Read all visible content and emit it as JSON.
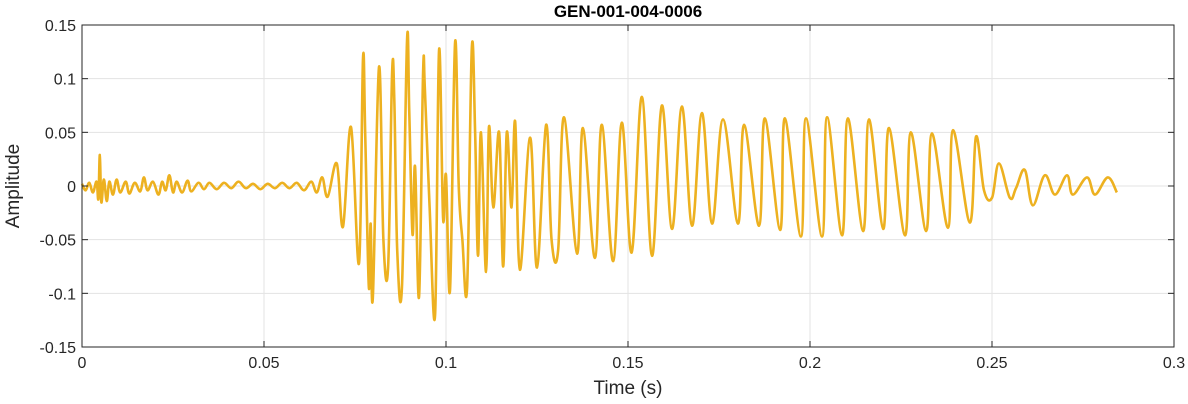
{
  "chart_data": {
    "type": "line",
    "title": "GEN-001-004-0006",
    "xlabel": "Time (s)",
    "ylabel": "Amplitude",
    "xlim": [
      0,
      0.3
    ],
    "ylim": [
      -0.15,
      0.15
    ],
    "xticks": [
      0,
      0.05,
      0.1,
      0.15,
      0.2,
      0.25,
      0.3
    ],
    "xtick_labels": [
      "0",
      "0.05",
      "0.1",
      "0.15",
      "0.2",
      "0.25",
      "0.3"
    ],
    "yticks": [
      -0.15,
      -0.1,
      -0.05,
      0,
      0.05,
      0.1,
      0.15
    ],
    "ytick_labels": [
      "-0.15",
      "-0.1",
      "-0.05",
      "0",
      "0.05",
      "0.1",
      "0.15"
    ],
    "grid": true,
    "line_color": "#EDB120",
    "series": [
      {
        "x": [
          0,
          0.001,
          0.002,
          0.003,
          0.004,
          0.0045,
          0.0049,
          0.0053,
          0.006,
          0.0068,
          0.0075,
          0.0085,
          0.0095,
          0.0105,
          0.012,
          0.013,
          0.0145,
          0.016,
          0.017,
          0.018,
          0.0195,
          0.021,
          0.022,
          0.023,
          0.024,
          0.025,
          0.026,
          0.0275,
          0.029,
          0.03,
          0.032,
          0.0335,
          0.035,
          0.037,
          0.039,
          0.041,
          0.043,
          0.045,
          0.047,
          0.049,
          0.051,
          0.053,
          0.055,
          0.057,
          0.059,
          0.061,
          0.063,
          0.0645,
          0.066,
          0.0675,
          0.07,
          0.0717,
          0.0739,
          0.0761,
          0.0772,
          0.0778,
          0.0788,
          0.0793,
          0.0799,
          0.0816,
          0.0828,
          0.0841,
          0.0852,
          0.0858,
          0.0866,
          0.0879,
          0.0893,
          0.0899,
          0.0908,
          0.0915,
          0.0926,
          0.0937,
          0.0942,
          0.0955,
          0.097,
          0.0981,
          0.0992,
          0.1,
          0.1011,
          0.1025,
          0.1035,
          0.1045,
          0.1058,
          0.1071,
          0.108,
          0.1088,
          0.1096,
          0.111,
          0.1118,
          0.113,
          0.1146,
          0.1157,
          0.1167,
          0.118,
          0.119,
          0.1203,
          0.1231,
          0.125,
          0.1275,
          0.129,
          0.1308,
          0.1324,
          0.136,
          0.1376,
          0.1409,
          0.1428,
          0.1459,
          0.1483,
          0.151,
          0.1538,
          0.1566,
          0.1593,
          0.1621,
          0.1648,
          0.1676,
          0.1703,
          0.1731,
          0.1761,
          0.1802,
          0.1819,
          0.186,
          0.1876,
          0.1918,
          0.1931,
          0.1975,
          0.1989,
          0.2033,
          0.2047,
          0.2088,
          0.2104,
          0.2146,
          0.2162,
          0.2201,
          0.2217,
          0.2261,
          0.2277,
          0.2319,
          0.2335,
          0.2379,
          0.2393,
          0.2439,
          0.2456,
          0.2478,
          0.25,
          0.2519,
          0.2549,
          0.2566,
          0.259,
          0.2612,
          0.2645,
          0.2673,
          0.2706,
          0.2722,
          0.2761,
          0.2783,
          0.2818,
          0.2843
        ],
        "y": [
          0.002,
          -0.004,
          0.003,
          -0.006,
          0.004,
          -0.012,
          0.029,
          -0.015,
          0.006,
          -0.014,
          0.004,
          -0.008,
          0.006,
          -0.006,
          0.004,
          -0.007,
          0.003,
          -0.005,
          0.008,
          -0.004,
          0.004,
          -0.008,
          0.004,
          -0.004,
          0.01,
          -0.006,
          0.004,
          -0.006,
          0.005,
          -0.005,
          0.003,
          -0.003,
          0.003,
          -0.003,
          0.003,
          -0.002,
          0.004,
          -0.002,
          0.002,
          -0.003,
          0.002,
          -0.002,
          0.003,
          -0.002,
          0.003,
          -0.004,
          0.004,
          -0.006,
          0.008,
          -0.01,
          0.021,
          -0.038,
          0.055,
          -0.072,
          0.119,
          0.049,
          -0.094,
          -0.035,
          -0.104,
          0.111,
          -0.05,
          -0.075,
          0.106,
          0.08,
          -0.06,
          -0.094,
          0.136,
          0.07,
          -0.045,
          0.018,
          -0.103,
          0.105,
          0.09,
          -0.02,
          -0.12,
          0.127,
          -0.03,
          0.01,
          -0.097,
          0.134,
          0.0,
          -0.05,
          -0.094,
          0.129,
          0.05,
          -0.065,
          0.05,
          -0.08,
          0.055,
          -0.02,
          0.05,
          -0.075,
          0.05,
          -0.02,
          0.06,
          -0.078,
          0.045,
          -0.076,
          0.057,
          -0.05,
          -0.06,
          0.064,
          -0.063,
          0.054,
          -0.067,
          0.057,
          -0.07,
          0.059,
          -0.062,
          0.083,
          -0.065,
          0.075,
          -0.04,
          0.074,
          -0.037,
          0.068,
          -0.035,
          0.062,
          -0.035,
          0.057,
          -0.037,
          0.063,
          -0.041,
          0.063,
          -0.047,
          0.063,
          -0.047,
          0.064,
          -0.046,
          0.063,
          -0.042,
          0.062,
          -0.04,
          0.054,
          -0.046,
          0.05,
          -0.042,
          0.049,
          -0.039,
          0.052,
          -0.034,
          0.046,
          -0.004,
          -0.011,
          0.021,
          -0.011,
          -0.002,
          0.015,
          -0.018,
          0.01,
          -0.008,
          0.01,
          -0.008,
          0.008,
          -0.008,
          0.008,
          -0.006
        ]
      }
    ]
  }
}
